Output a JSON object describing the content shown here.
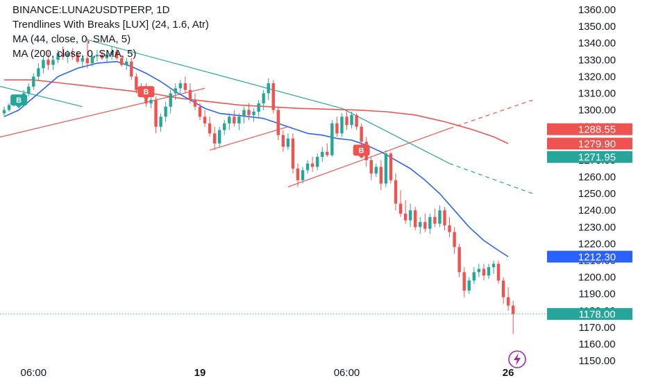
{
  "legend": {
    "title": "BINANCE:LUNA2USDTPERP, 1D",
    "indicator": "Trendlines With Breaks [LUX] (24, 1.6, Atr)",
    "ma44": "MA (44, close, 0, SMA, 5)",
    "ma200": "MA (200, close, 0, SMA, 5)"
  },
  "colors": {
    "up": "#26a69a",
    "down": "#ef5350",
    "ma44": "#2962ff",
    "ma200": "#ef5350",
    "trend_down": "#26a69a",
    "trend_up": "#ef5350",
    "current_price": "#26a69a"
  },
  "chart_data": {
    "type": "candlestick",
    "y_axis": {
      "min": 1150,
      "max": 1360,
      "ticks": [
        "1150.00",
        "1160.00",
        "1170.00",
        "1180.00",
        "1190.00",
        "1200.00",
        "1210.00",
        "1220.00",
        "1230.00",
        "1240.00",
        "1250.00",
        "1260.00",
        "1270.00",
        "1280.00",
        "1290.00",
        "1300.00",
        "1310.00",
        "1320.00",
        "1330.00",
        "1340.00",
        "1350.00",
        "1360.00"
      ]
    },
    "x_axis": {
      "ticks": [
        {
          "label": "06:00",
          "bar": 6,
          "bold": false
        },
        {
          "label": "19",
          "bar": 40,
          "bold": true
        },
        {
          "label": "06:00",
          "bar": 70,
          "bold": false
        },
        {
          "label": "26",
          "bar": 103,
          "bold": true
        }
      ]
    },
    "price_tags": [
      {
        "label": "1288.55",
        "value": 1288.55,
        "color": "#ef5350"
      },
      {
        "label": "1279.90",
        "value": 1279.9,
        "color": "#ef5350"
      },
      {
        "label": "1271.95",
        "value": 1271.95,
        "color": "#26a69a"
      },
      {
        "label": "1212.30",
        "value": 1212.3,
        "color": "#2962ff"
      },
      {
        "label": "1178.00",
        "value": 1178.0,
        "color": "#26a69a"
      }
    ],
    "break_labels": [
      {
        "text": "B",
        "bar": 3,
        "value": 1306,
        "color": "#26a69a"
      },
      {
        "text": "B",
        "bar": 29,
        "value": 1311,
        "color": "#ef5350"
      },
      {
        "text": "B",
        "bar": 73,
        "value": 1276,
        "color": "#ef5350"
      }
    ],
    "candles": [
      {
        "o": 1298,
        "h": 1302,
        "l": 1296,
        "c": 1300
      },
      {
        "o": 1300,
        "h": 1304,
        "l": 1299,
        "c": 1303
      },
      {
        "o": 1303,
        "h": 1306,
        "l": 1302,
        "c": 1305
      },
      {
        "o": 1305,
        "h": 1308,
        "l": 1303,
        "c": 1304
      },
      {
        "o": 1304,
        "h": 1312,
        "l": 1302,
        "c": 1310
      },
      {
        "o": 1310,
        "h": 1316,
        "l": 1308,
        "c": 1314
      },
      {
        "o": 1314,
        "h": 1322,
        "l": 1312,
        "c": 1320
      },
      {
        "o": 1320,
        "h": 1328,
        "l": 1318,
        "c": 1325
      },
      {
        "o": 1325,
        "h": 1332,
        "l": 1322,
        "c": 1330
      },
      {
        "o": 1330,
        "h": 1335,
        "l": 1324,
        "c": 1327
      },
      {
        "o": 1327,
        "h": 1332,
        "l": 1324,
        "c": 1330
      },
      {
        "o": 1330,
        "h": 1336,
        "l": 1328,
        "c": 1334
      },
      {
        "o": 1334,
        "h": 1338,
        "l": 1330,
        "c": 1332
      },
      {
        "o": 1332,
        "h": 1336,
        "l": 1328,
        "c": 1334
      },
      {
        "o": 1334,
        "h": 1337,
        "l": 1330,
        "c": 1333
      },
      {
        "o": 1333,
        "h": 1335,
        "l": 1328,
        "c": 1329
      },
      {
        "o": 1329,
        "h": 1333,
        "l": 1325,
        "c": 1331
      },
      {
        "o": 1331,
        "h": 1343,
        "l": 1325,
        "c": 1328
      },
      {
        "o": 1328,
        "h": 1334,
        "l": 1326,
        "c": 1332
      },
      {
        "o": 1332,
        "h": 1336,
        "l": 1329,
        "c": 1333
      },
      {
        "o": 1333,
        "h": 1336,
        "l": 1330,
        "c": 1331
      },
      {
        "o": 1331,
        "h": 1335,
        "l": 1328,
        "c": 1333
      },
      {
        "o": 1333,
        "h": 1338,
        "l": 1330,
        "c": 1335
      },
      {
        "o": 1335,
        "h": 1337,
        "l": 1330,
        "c": 1331
      },
      {
        "o": 1331,
        "h": 1333,
        "l": 1326,
        "c": 1327
      },
      {
        "o": 1327,
        "h": 1331,
        "l": 1324,
        "c": 1329
      },
      {
        "o": 1329,
        "h": 1331,
        "l": 1318,
        "c": 1320
      },
      {
        "o": 1320,
        "h": 1322,
        "l": 1310,
        "c": 1312
      },
      {
        "o": 1312,
        "h": 1316,
        "l": 1308,
        "c": 1314
      },
      {
        "o": 1314,
        "h": 1316,
        "l": 1302,
        "c": 1304
      },
      {
        "o": 1304,
        "h": 1308,
        "l": 1301,
        "c": 1306
      },
      {
        "o": 1306,
        "h": 1308,
        "l": 1286,
        "c": 1290
      },
      {
        "o": 1290,
        "h": 1298,
        "l": 1287,
        "c": 1296
      },
      {
        "o": 1296,
        "h": 1305,
        "l": 1293,
        "c": 1302
      },
      {
        "o": 1302,
        "h": 1312,
        "l": 1298,
        "c": 1310
      },
      {
        "o": 1310,
        "h": 1316,
        "l": 1306,
        "c": 1313
      },
      {
        "o": 1313,
        "h": 1318,
        "l": 1310,
        "c": 1316
      },
      {
        "o": 1316,
        "h": 1320,
        "l": 1310,
        "c": 1312
      },
      {
        "o": 1312,
        "h": 1316,
        "l": 1304,
        "c": 1306
      },
      {
        "o": 1306,
        "h": 1310,
        "l": 1300,
        "c": 1302
      },
      {
        "o": 1302,
        "h": 1304,
        "l": 1294,
        "c": 1296
      },
      {
        "o": 1296,
        "h": 1300,
        "l": 1290,
        "c": 1292
      },
      {
        "o": 1292,
        "h": 1296,
        "l": 1284,
        "c": 1286
      },
      {
        "o": 1286,
        "h": 1290,
        "l": 1276,
        "c": 1280
      },
      {
        "o": 1280,
        "h": 1290,
        "l": 1278,
        "c": 1288
      },
      {
        "o": 1288,
        "h": 1294,
        "l": 1285,
        "c": 1292
      },
      {
        "o": 1292,
        "h": 1298,
        "l": 1288,
        "c": 1296
      },
      {
        "o": 1296,
        "h": 1300,
        "l": 1290,
        "c": 1292
      },
      {
        "o": 1292,
        "h": 1298,
        "l": 1288,
        "c": 1296
      },
      {
        "o": 1296,
        "h": 1302,
        "l": 1292,
        "c": 1300
      },
      {
        "o": 1300,
        "h": 1304,
        "l": 1294,
        "c": 1297
      },
      {
        "o": 1297,
        "h": 1301,
        "l": 1293,
        "c": 1299
      },
      {
        "o": 1299,
        "h": 1306,
        "l": 1296,
        "c": 1304
      },
      {
        "o": 1304,
        "h": 1312,
        "l": 1300,
        "c": 1310
      },
      {
        "o": 1310,
        "h": 1319,
        "l": 1306,
        "c": 1316
      },
      {
        "o": 1316,
        "h": 1318,
        "l": 1298,
        "c": 1300
      },
      {
        "o": 1300,
        "h": 1302,
        "l": 1282,
        "c": 1285
      },
      {
        "o": 1285,
        "h": 1288,
        "l": 1275,
        "c": 1278
      },
      {
        "o": 1278,
        "h": 1286,
        "l": 1276,
        "c": 1283
      },
      {
        "o": 1283,
        "h": 1286,
        "l": 1262,
        "c": 1265
      },
      {
        "o": 1265,
        "h": 1268,
        "l": 1254,
        "c": 1258
      },
      {
        "o": 1258,
        "h": 1266,
        "l": 1256,
        "c": 1264
      },
      {
        "o": 1264,
        "h": 1270,
        "l": 1262,
        "c": 1268
      },
      {
        "o": 1268,
        "h": 1272,
        "l": 1263,
        "c": 1266
      },
      {
        "o": 1266,
        "h": 1274,
        "l": 1264,
        "c": 1272
      },
      {
        "o": 1272,
        "h": 1278,
        "l": 1269,
        "c": 1275
      },
      {
        "o": 1275,
        "h": 1280,
        "l": 1272,
        "c": 1273
      },
      {
        "o": 1273,
        "h": 1294,
        "l": 1272,
        "c": 1292
      },
      {
        "o": 1292,
        "h": 1296,
        "l": 1284,
        "c": 1286
      },
      {
        "o": 1286,
        "h": 1298,
        "l": 1284,
        "c": 1296
      },
      {
        "o": 1296,
        "h": 1300,
        "l": 1288,
        "c": 1291
      },
      {
        "o": 1291,
        "h": 1299,
        "l": 1289,
        "c": 1297
      },
      {
        "o": 1297,
        "h": 1298,
        "l": 1288,
        "c": 1290
      },
      {
        "o": 1290,
        "h": 1292,
        "l": 1278,
        "c": 1281
      },
      {
        "o": 1281,
        "h": 1284,
        "l": 1266,
        "c": 1270
      },
      {
        "o": 1270,
        "h": 1272,
        "l": 1258,
        "c": 1262
      },
      {
        "o": 1262,
        "h": 1268,
        "l": 1260,
        "c": 1266
      },
      {
        "o": 1266,
        "h": 1270,
        "l": 1252,
        "c": 1256
      },
      {
        "o": 1256,
        "h": 1276,
        "l": 1254,
        "c": 1274
      },
      {
        "o": 1274,
        "h": 1275,
        "l": 1256,
        "c": 1258
      },
      {
        "o": 1258,
        "h": 1262,
        "l": 1240,
        "c": 1244
      },
      {
        "o": 1244,
        "h": 1252,
        "l": 1236,
        "c": 1238
      },
      {
        "o": 1238,
        "h": 1246,
        "l": 1232,
        "c": 1234
      },
      {
        "o": 1234,
        "h": 1244,
        "l": 1230,
        "c": 1240
      },
      {
        "o": 1240,
        "h": 1242,
        "l": 1228,
        "c": 1230
      },
      {
        "o": 1230,
        "h": 1236,
        "l": 1226,
        "c": 1233
      },
      {
        "o": 1233,
        "h": 1238,
        "l": 1227,
        "c": 1229
      },
      {
        "o": 1229,
        "h": 1238,
        "l": 1226,
        "c": 1236
      },
      {
        "o": 1236,
        "h": 1241,
        "l": 1230,
        "c": 1232
      },
      {
        "o": 1232,
        "h": 1243,
        "l": 1230,
        "c": 1240
      },
      {
        "o": 1240,
        "h": 1242,
        "l": 1228,
        "c": 1231
      },
      {
        "o": 1231,
        "h": 1236,
        "l": 1224,
        "c": 1227
      },
      {
        "o": 1227,
        "h": 1230,
        "l": 1214,
        "c": 1218
      },
      {
        "o": 1218,
        "h": 1220,
        "l": 1200,
        "c": 1203
      },
      {
        "o": 1203,
        "h": 1206,
        "l": 1188,
        "c": 1192
      },
      {
        "o": 1192,
        "h": 1200,
        "l": 1190,
        "c": 1198
      },
      {
        "o": 1198,
        "h": 1206,
        "l": 1196,
        "c": 1203
      },
      {
        "o": 1203,
        "h": 1208,
        "l": 1200,
        "c": 1205
      },
      {
        "o": 1205,
        "h": 1208,
        "l": 1198,
        "c": 1201
      },
      {
        "o": 1201,
        "h": 1208,
        "l": 1199,
        "c": 1206
      },
      {
        "o": 1206,
        "h": 1210,
        "l": 1202,
        "c": 1208
      },
      {
        "o": 1208,
        "h": 1210,
        "l": 1196,
        "c": 1198
      },
      {
        "o": 1198,
        "h": 1200,
        "l": 1184,
        "c": 1188
      },
      {
        "o": 1188,
        "h": 1194,
        "l": 1180,
        "c": 1183
      },
      {
        "o": 1183,
        "h": 1186,
        "l": 1166,
        "c": 1178
      }
    ],
    "ma44": [
      [
        0,
        1296
      ],
      [
        3,
        1300
      ],
      [
        7,
        1310
      ],
      [
        11,
        1320
      ],
      [
        15,
        1325
      ],
      [
        19,
        1328
      ],
      [
        23,
        1329
      ],
      [
        26,
        1326
      ],
      [
        29,
        1322
      ],
      [
        32,
        1317
      ],
      [
        35,
        1311
      ],
      [
        38,
        1306
      ],
      [
        41,
        1301
      ],
      [
        44,
        1298
      ],
      [
        47,
        1297
      ],
      [
        50,
        1296
      ],
      [
        53,
        1295
      ],
      [
        56,
        1292
      ],
      [
        59,
        1289
      ],
      [
        62,
        1286
      ],
      [
        65,
        1285
      ],
      [
        68,
        1283
      ],
      [
        71,
        1282
      ],
      [
        74,
        1279
      ],
      [
        77,
        1275
      ],
      [
        80,
        1270
      ],
      [
        83,
        1265
      ],
      [
        86,
        1258
      ],
      [
        89,
        1250
      ],
      [
        92,
        1240
      ],
      [
        95,
        1230
      ],
      [
        98,
        1222
      ],
      [
        101,
        1216
      ],
      [
        103,
        1212.3
      ]
    ],
    "ma200": [
      [
        0,
        1318
      ],
      [
        6,
        1318
      ],
      [
        12,
        1316
      ],
      [
        18,
        1314
      ],
      [
        24,
        1312
      ],
      [
        30,
        1310
      ],
      [
        36,
        1307
      ],
      [
        42,
        1305
      ],
      [
        48,
        1303
      ],
      [
        54,
        1302
      ],
      [
        60,
        1301
      ],
      [
        66,
        1300.5
      ],
      [
        72,
        1300
      ],
      [
        78,
        1299
      ],
      [
        84,
        1297
      ],
      [
        90,
        1293
      ],
      [
        96,
        1288
      ],
      [
        100,
        1284
      ],
      [
        103,
        1279.9
      ]
    ],
    "trend_down": [
      {
        "from": [
          -2,
          1315
        ],
        "to": [
          16,
          1302
        ],
        "dashed": false
      },
      {
        "from": [
          17,
          1342
        ],
        "to": [
          69,
          1301
        ],
        "dashed": false
      },
      {
        "from": [
          69,
          1301
        ],
        "to": [
          91,
          1268
        ],
        "dashed": false
      },
      {
        "from": [
          91,
          1268
        ],
        "to": [
          108,
          1250
        ],
        "dashed": true
      }
    ],
    "trend_up": [
      {
        "from": [
          -2,
          1283
        ],
        "to": [
          41,
          1313
        ],
        "dashed": false
      },
      {
        "from": [
          42,
          1276
        ],
        "to": [
          58,
          1290
        ],
        "dashed": false
      },
      {
        "from": [
          58,
          1254
        ],
        "to": [
          91,
          1289
        ],
        "dashed": false
      },
      {
        "from": [
          91,
          1289
        ],
        "to": [
          108,
          1306
        ],
        "dashed": true
      }
    ],
    "current_price": 1178.0
  }
}
